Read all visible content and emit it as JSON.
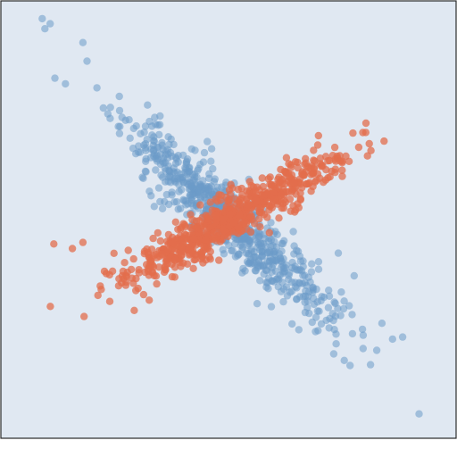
{
  "chart_data": {
    "type": "scatter",
    "title": "",
    "xlabel": "",
    "ylabel": "",
    "axes_visible": false,
    "grid": false,
    "xlim": [
      -4.3,
      4.3
    ],
    "ylim": [
      -4.3,
      4.3
    ],
    "colors": {
      "background": "#e0e8f2",
      "frame": "#2a2a2a"
    },
    "series": [
      {
        "color": "#6b9bc8",
        "opacity": 0.55,
        "generator": {
          "n": 700,
          "mean": [
            0.0,
            0.0
          ],
          "std": [
            1.0,
            1.0
          ],
          "correlation": -0.93,
          "seed": 11
        },
        "extra_points": [
          [
            -3.52,
            3.95
          ],
          [
            -3.37,
            3.85
          ],
          [
            -2.75,
            3.48
          ],
          [
            -3.08,
            2.67
          ],
          [
            -3.28,
            2.78
          ],
          [
            3.1,
            -2.35
          ],
          [
            3.29,
            -2.31
          ],
          [
            3.6,
            -3.82
          ]
        ]
      },
      {
        "color": "#e36e4c",
        "opacity": 0.75,
        "generator": {
          "n": 700,
          "mean": [
            0.0,
            0.0
          ],
          "std": [
            1.0,
            0.62
          ],
          "correlation": 0.93,
          "seed": 29
        },
        "extra_points": [
          [
            -3.3,
            -0.48
          ],
          [
            -2.95,
            -0.57
          ],
          [
            -2.75,
            -0.45
          ],
          [
            1.25,
            0.15
          ],
          [
            1.95,
            0.95
          ],
          [
            2.15,
            0.85
          ],
          [
            1.7,
            1.65
          ],
          [
            2.35,
            1.7
          ]
        ]
      }
    ]
  }
}
